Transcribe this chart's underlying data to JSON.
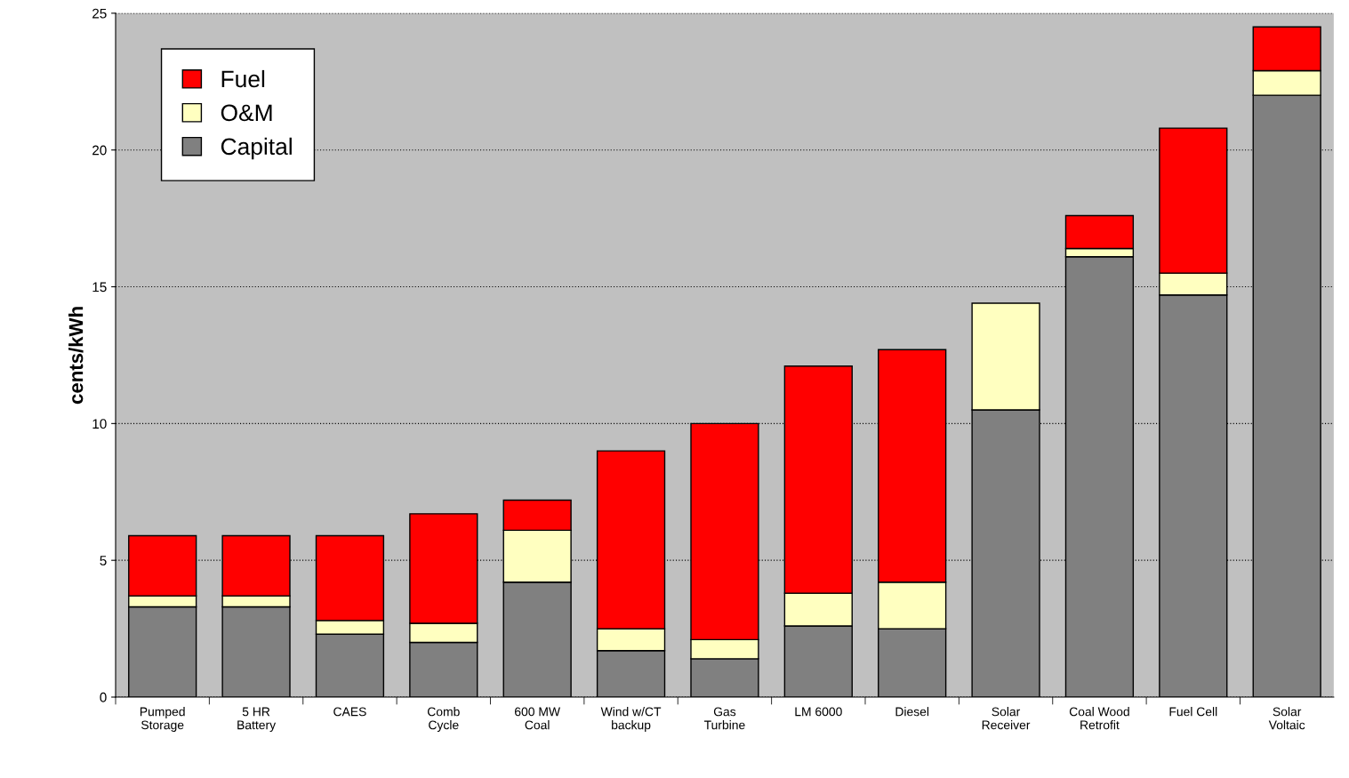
{
  "chart_data": {
    "type": "bar",
    "stacked": true,
    "ylabel": "cents/kWh",
    "categories": [
      "Pumped\nStorage",
      "5 HR\nBattery",
      "CAES",
      "Comb\nCycle",
      "600 MW\nCoal",
      "Wind w/CT\nbackup",
      "Gas\nTurbine",
      "LM 6000",
      "Diesel",
      "Solar\nReceiver",
      "Coal Wood\nRetrofit",
      "Fuel Cell",
      "Solar\nVoltaic"
    ],
    "series": [
      {
        "name": "Capital",
        "color": "#808080",
        "values": [
          3.3,
          3.3,
          2.3,
          2.0,
          4.2,
          1.7,
          1.4,
          2.6,
          2.5,
          10.5,
          16.1,
          14.7,
          22.0
        ]
      },
      {
        "name": "O&M",
        "color": "#ffffc0",
        "values": [
          0.4,
          0.4,
          0.5,
          0.7,
          1.9,
          0.8,
          0.7,
          1.2,
          1.7,
          3.9,
          0.3,
          0.8,
          0.9
        ]
      },
      {
        "name": "Fuel",
        "color": "#ff0000",
        "values": [
          2.2,
          2.2,
          3.1,
          4.0,
          1.1,
          6.5,
          7.9,
          8.3,
          8.5,
          null,
          1.2,
          5.3,
          1.6
        ]
      }
    ],
    "ylim": [
      0,
      25
    ],
    "yticks": [
      0,
      5,
      10,
      15,
      20,
      25
    ],
    "grid": "y",
    "legend": "top left"
  }
}
